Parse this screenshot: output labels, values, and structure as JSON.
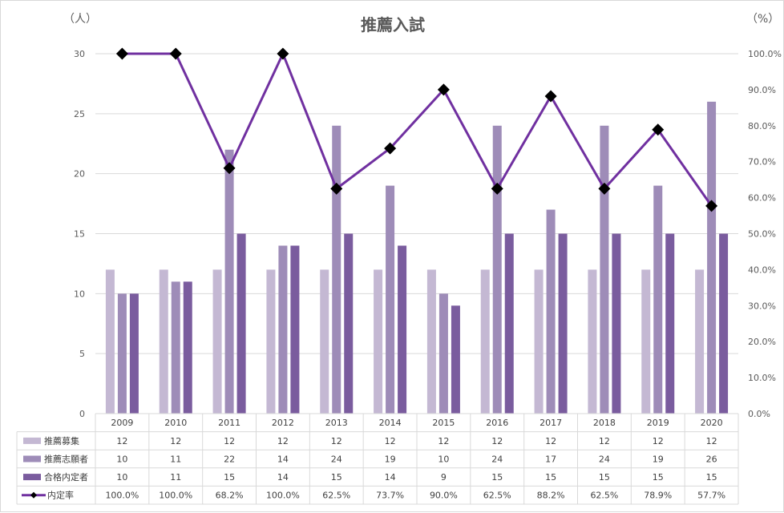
{
  "chart_data": {
    "type": "bar",
    "title": "推薦入試",
    "left_unit": "（人）",
    "right_unit": "（%）",
    "categories": [
      "2009",
      "2010",
      "2011",
      "2012",
      "2013",
      "2014",
      "2015",
      "2016",
      "2017",
      "2018",
      "2019",
      "2020"
    ],
    "ylim": [
      0,
      30
    ],
    "y_ticks": [
      0,
      5,
      10,
      15,
      20,
      25,
      30
    ],
    "y2lim": [
      0,
      100
    ],
    "y2_ticks": [
      "0.0%",
      "10.0%",
      "20.0%",
      "30.0%",
      "40.0%",
      "50.0%",
      "60.0%",
      "70.0%",
      "80.0%",
      "90.0%",
      "100.0%"
    ],
    "grid": true,
    "series": [
      {
        "name": "推薦募集",
        "type": "bar",
        "axis": "left",
        "color": "#c4b8d3",
        "values": [
          12,
          12,
          12,
          12,
          12,
          12,
          12,
          12,
          12,
          12,
          12,
          12
        ]
      },
      {
        "name": "推薦志願者",
        "type": "bar",
        "axis": "left",
        "color": "#9e8cb8",
        "values": [
          10,
          11,
          22,
          14,
          24,
          19,
          10,
          24,
          17,
          24,
          19,
          26
        ]
      },
      {
        "name": "合格内定者",
        "type": "bar",
        "axis": "left",
        "color": "#7a5c9e",
        "values": [
          10,
          11,
          15,
          14,
          15,
          14,
          9,
          15,
          15,
          15,
          15,
          15
        ]
      },
      {
        "name": "内定率",
        "type": "line",
        "axis": "right",
        "color": "#7030a0",
        "marker_color": "#000000",
        "values": [
          100.0,
          100.0,
          68.2,
          100.0,
          62.5,
          73.7,
          90.0,
          62.5,
          88.2,
          62.5,
          78.9,
          57.7
        ],
        "labels": [
          "100.0%",
          "100.0%",
          "68.2%",
          "100.0%",
          "62.5%",
          "73.7%",
          "90.0%",
          "62.5%",
          "88.2%",
          "62.5%",
          "78.9%",
          "57.7%"
        ]
      }
    ]
  }
}
